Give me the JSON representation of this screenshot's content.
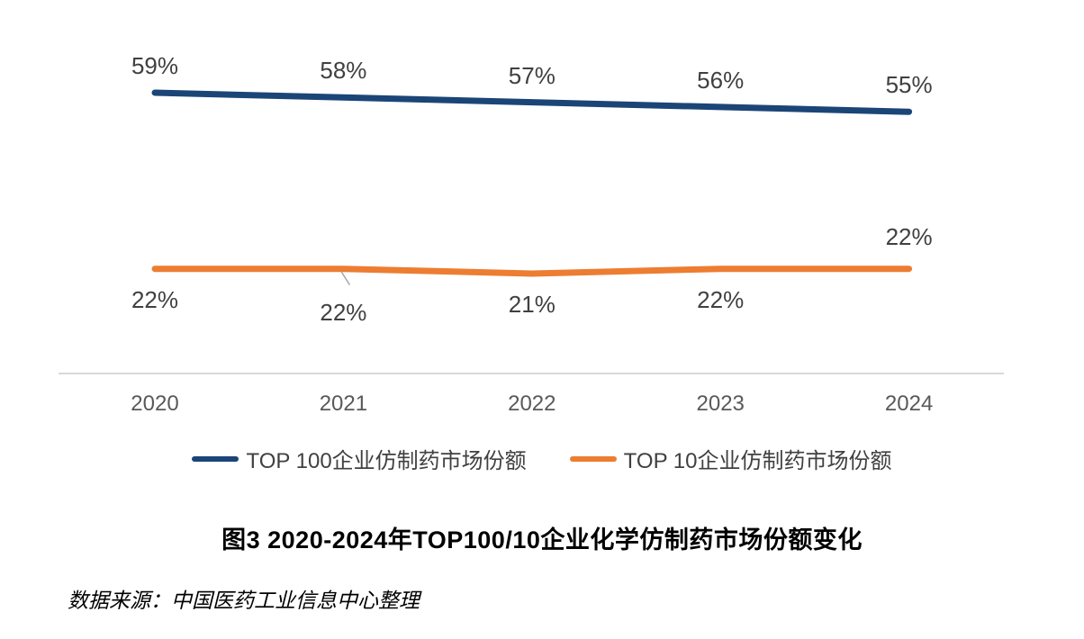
{
  "chart_data": {
    "type": "line",
    "title": "图3 2020-2024年TOP100/10企业化学仿制药市场份额变化",
    "categories": [
      "2020",
      "2021",
      "2022",
      "2023",
      "2024"
    ],
    "series": [
      {
        "name": "TOP 100企业仿制药市场份额",
        "values": [
          59,
          58,
          57,
          56,
          55
        ],
        "color": "#1B4577"
      },
      {
        "name": "TOP 10企业仿制药市场份额",
        "values": [
          22,
          22,
          21,
          22,
          22
        ],
        "color": "#ED7D31"
      }
    ],
    "unit": "%",
    "ylim": [
      0,
      68
    ],
    "grid": false,
    "legend_position": "bottom",
    "axis_line_color": "#D9D9D9",
    "leader_line_color": "#A6A6A6",
    "data_label_color": "#404040",
    "tick_label_color": "#595959"
  },
  "source": {
    "text": "数据来源：中国医药工业信息中心整理"
  }
}
